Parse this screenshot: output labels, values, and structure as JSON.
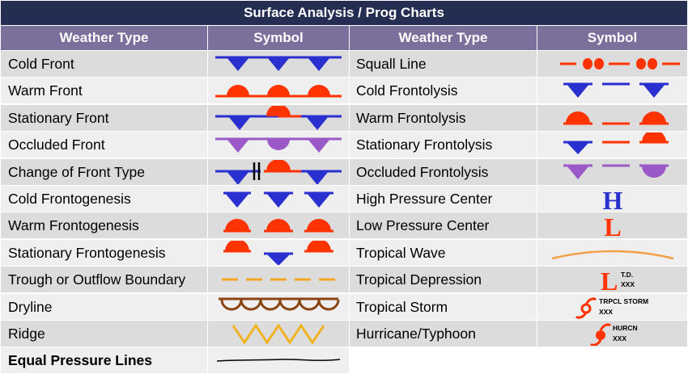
{
  "title": "Surface Analysis / Prog Charts",
  "headers": {
    "left_type": "Weather Type",
    "left_symbol": "Symbol",
    "right_type": "Weather Type",
    "right_symbol": "Symbol"
  },
  "left_rows": [
    {
      "label": "Cold Front",
      "icon": "cold-front-icon"
    },
    {
      "label": "Warm Front",
      "icon": "warm-front-icon"
    },
    {
      "label": "Stationary Front",
      "icon": "stationary-front-icon"
    },
    {
      "label": "Occluded Front",
      "icon": "occluded-front-icon"
    },
    {
      "label": "Change of Front Type",
      "icon": "change-of-front-type-icon"
    },
    {
      "label": "Cold Frontogenesis",
      "icon": "cold-frontogenesis-icon"
    },
    {
      "label": "Warm Frontogenesis",
      "icon": "warm-frontogenesis-icon"
    },
    {
      "label": "Stationary Frontogenesis",
      "icon": "stationary-frontogenesis-icon"
    },
    {
      "label": "Trough or Outflow Boundary",
      "icon": "trough-icon"
    },
    {
      "label": "Dryline",
      "icon": "dryline-icon"
    },
    {
      "label": "Ridge",
      "icon": "ridge-icon"
    },
    {
      "label": "Equal Pressure Lines",
      "icon": "isobar-icon"
    }
  ],
  "right_rows": [
    {
      "label": "Squall Line",
      "icon": "squall-line-icon"
    },
    {
      "label": "Cold Frontolysis",
      "icon": "cold-frontolysis-icon"
    },
    {
      "label": "Warm Frontolysis",
      "icon": "warm-frontolysis-icon"
    },
    {
      "label": "Stationary Frontolysis",
      "icon": "stationary-frontolysis-icon"
    },
    {
      "label": "Occluded Frontolysis",
      "icon": "occluded-frontolysis-icon"
    },
    {
      "label": "High Pressure Center",
      "icon": "high-pressure-icon"
    },
    {
      "label": "Low Pressure Center",
      "icon": "low-pressure-icon"
    },
    {
      "label": "Tropical Wave",
      "icon": "tropical-wave-icon"
    },
    {
      "label": "Tropical Depression",
      "icon": "tropical-depression-icon"
    },
    {
      "label": "Tropical Storm",
      "icon": "tropical-storm-icon"
    },
    {
      "label": "Hurricane/Typhoon",
      "icon": "hurricane-icon"
    }
  ],
  "symbol_text": {
    "high": "H",
    "low": "L",
    "td_low": "L",
    "td_label": "T.D.",
    "td_code": "XXX",
    "ts_label": "TRPCL STORM",
    "ts_code": "XXX",
    "hu_label": "HURCN",
    "hu_code": "XXX"
  },
  "colors": {
    "title_bg": "#242d52",
    "header_bg": "#7b6f9b",
    "row_dark": "#dcdcdc",
    "row_light": "#efefef",
    "cold": "#2a2fcf",
    "warm": "#ff3300",
    "occluded": "#9b59c8",
    "trough": "#f5a623",
    "dryline": "#8b4513",
    "ridge": "#f0b323",
    "wave": "#f3a04a"
  }
}
